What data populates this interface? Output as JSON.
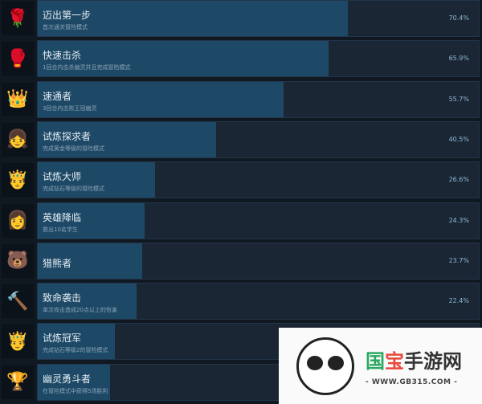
{
  "achievements": [
    {
      "name": "迈出第一步",
      "desc": "首次通关冒险模式",
      "pct": "70.4%",
      "value": 70.4,
      "icon": "rose-icon",
      "glyph": "🌹",
      "color": "#c0392b"
    },
    {
      "name": "快速击杀",
      "desc": "1回合内击杀幽灵并且完成冒险模式",
      "pct": "65.9%",
      "value": 65.9,
      "icon": "boxing-glove-icon",
      "glyph": "🥊",
      "color": "#c0392b"
    },
    {
      "name": "速通者",
      "desc": "3回合内击败王冠幽灵",
      "pct": "55.7%",
      "value": 55.7,
      "icon": "broken-crown-icon",
      "glyph": "👑",
      "color": "#e8845a"
    },
    {
      "name": "试炼探求者",
      "desc": "完成黄金等级的冒险模式",
      "pct": "40.5%",
      "value": 40.5,
      "icon": "character-icon",
      "glyph": "👧",
      "color": "#d9a07a"
    },
    {
      "name": "试炼大师",
      "desc": "完成钻石等级的冒险模式",
      "pct": "26.6%",
      "value": 26.6,
      "icon": "crowned-character-icon",
      "glyph": "🤴",
      "color": "#e8a040"
    },
    {
      "name": "英雄降临",
      "desc": "救出10名学生",
      "pct": "24.3%",
      "value": 24.3,
      "icon": "purple-hair-character-icon",
      "glyph": "👩",
      "color": "#8a4a9a"
    },
    {
      "name": "猎熊者",
      "desc": "",
      "pct": "23.7%",
      "value": 23.7,
      "icon": "bear-head-icon",
      "glyph": "🐻",
      "color": "#8a4a3a"
    },
    {
      "name": "致命袭击",
      "desc": "单次攻击造成20点以上的伤害",
      "pct": "22.4%",
      "value": 22.4,
      "icon": "hammer-icon",
      "glyph": "🔨",
      "color": "#9a3a3a"
    },
    {
      "name": "试炼冠军",
      "desc": "完成钻石等级2的冒险模式",
      "pct": "",
      "value": 17.5,
      "icon": "crowned-character-icon",
      "glyph": "🤴",
      "color": "#e8a040"
    },
    {
      "name": "幽灵勇斗者",
      "desc": "在冒险模式中获得5场胜利",
      "pct": "",
      "value": 16.4,
      "icon": "trophy-icon",
      "glyph": "🏆",
      "color": "#bbbbbb"
    }
  ],
  "watermark": {
    "title_a": "国",
    "title_b": "宝",
    "title_c": "手游网",
    "url": "- WWW.GB315.COM -"
  }
}
